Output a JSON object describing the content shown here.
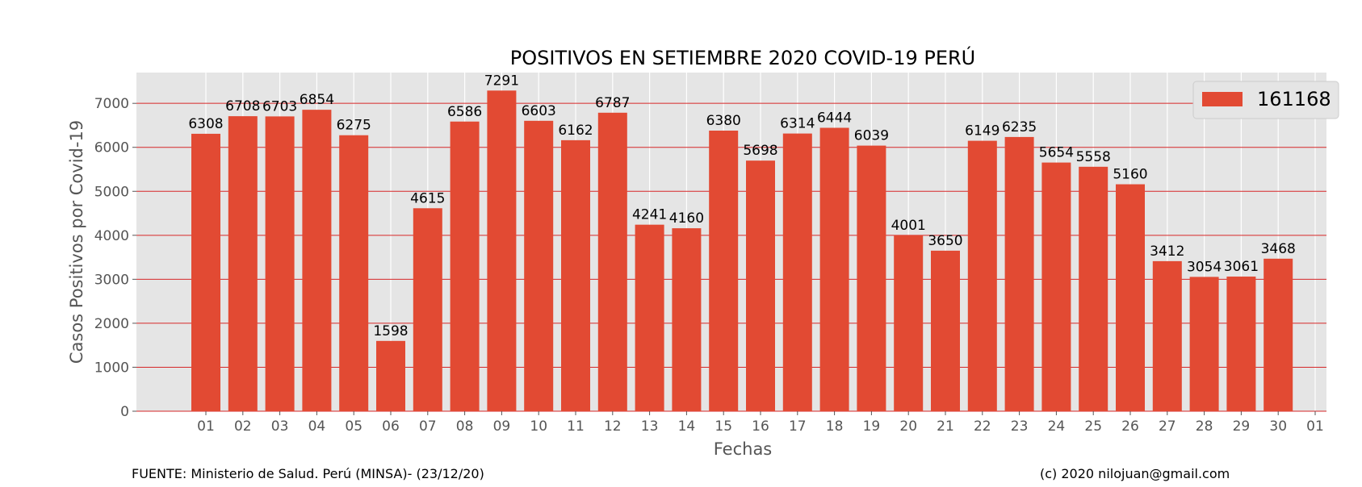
{
  "chart_data": {
    "type": "bar",
    "title": "POSITIVOS EN SETIEMBRE 2020 COVID-19 PERÚ",
    "xlabel": "Fechas",
    "ylabel": "Casos Positivos por Covid-19",
    "ylim": [
      0,
      7700
    ],
    "yticks": [
      0,
      1000,
      2000,
      3000,
      4000,
      5000,
      6000,
      7000
    ],
    "xtick_labels": [
      "01",
      "02",
      "03",
      "04",
      "05",
      "06",
      "07",
      "08",
      "09",
      "10",
      "11",
      "12",
      "13",
      "14",
      "15",
      "16",
      "17",
      "18",
      "19",
      "20",
      "21",
      "22",
      "23",
      "24",
      "25",
      "26",
      "27",
      "28",
      "29",
      "30",
      "01"
    ],
    "categories": [
      "01",
      "02",
      "03",
      "04",
      "05",
      "06",
      "07",
      "08",
      "09",
      "10",
      "11",
      "12",
      "13",
      "14",
      "15",
      "16",
      "17",
      "18",
      "19",
      "20",
      "21",
      "22",
      "23",
      "24",
      "25",
      "26",
      "27",
      "28",
      "29",
      "30"
    ],
    "series": [
      {
        "name": "161168",
        "values": [
          6308,
          6708,
          6703,
          6854,
          6275,
          1598,
          4615,
          6586,
          7291,
          6603,
          6162,
          6787,
          4241,
          4160,
          6380,
          5698,
          6314,
          6444,
          6039,
          4001,
          3650,
          6149,
          6235,
          5654,
          5558,
          5160,
          3412,
          3054,
          3061,
          3468
        ]
      }
    ],
    "data_labels": [
      "6308",
      "6708",
      "6703",
      "6854",
      "6275",
      "1598",
      "4615",
      "6586",
      "7291",
      "6603",
      "6162",
      "6787",
      "4241",
      "4160",
      "6380",
      "5698",
      "6314",
      "6444",
      "6039",
      "4001",
      "3650",
      "6149",
      "6235",
      "5654",
      "5558",
      "5160",
      "3412",
      "3054",
      "3061",
      "3468"
    ],
    "legend": {
      "label": "161168",
      "position": "top-right"
    },
    "grid": true,
    "style": "ggplot",
    "colors": {
      "bar": "#E24A33",
      "background": "#E5E5E5",
      "grid_horizontal": "#D62728",
      "grid_vertical": "#FFFFFF",
      "tick_text": "#555555"
    },
    "footer_left": "FUENTE: Ministerio de Salud. Perú (MINSA)- (23/12/20)",
    "footer_right": "(c) 2020 nilojuan@gmail.com"
  }
}
